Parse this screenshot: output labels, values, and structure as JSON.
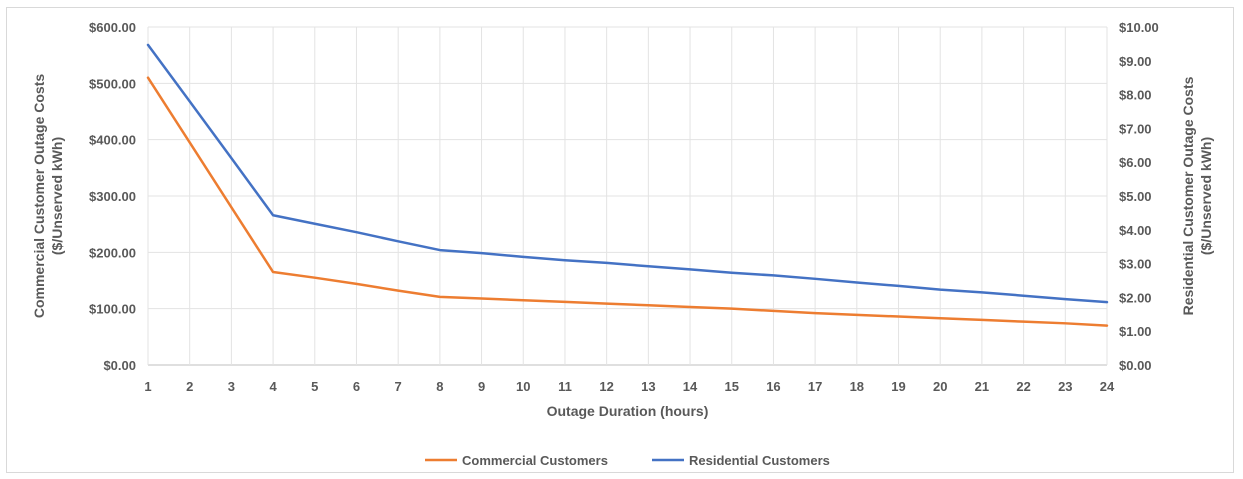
{
  "chart_data": {
    "type": "line",
    "x": [
      1,
      2,
      3,
      4,
      5,
      6,
      7,
      8,
      9,
      10,
      11,
      12,
      13,
      14,
      15,
      16,
      17,
      18,
      19,
      20,
      21,
      22,
      23,
      24
    ],
    "xlabel": "Outage Duration (hours)",
    "ylabel_left": "Commercial Customer Outage Costs ($/Unserved kWh)",
    "ylabel_right": "Residential Customer Outage Costs ($/Unserved kWh)",
    "ylim_left": [
      0,
      600
    ],
    "ylim_right": [
      0,
      10
    ],
    "yticks_left": [
      "$0.00",
      "$100.00",
      "$200.00",
      "$300.00",
      "$400.00",
      "$500.00",
      "$600.00"
    ],
    "yticks_right": [
      "$0.00",
      "$1.00",
      "$2.00",
      "$3.00",
      "$4.00",
      "$5.00",
      "$6.00",
      "$7.00",
      "$8.00",
      "$9.00",
      "$10.00"
    ],
    "grid": true,
    "legend_position": "bottom",
    "series": [
      {
        "name": "Commercial Customers",
        "axis": "left",
        "color": "#ED7D31",
        "values": [
          510,
          395,
          280,
          165,
          155,
          144,
          132,
          121,
          118,
          115,
          112,
          109,
          106,
          103,
          100,
          96,
          92,
          89,
          86,
          83,
          80,
          77,
          74,
          70
        ]
      },
      {
        "name": "Residential Customers",
        "axis": "right",
        "color": "#4472C4",
        "values": [
          9.47,
          7.8,
          6.12,
          4.43,
          4.18,
          3.93,
          3.66,
          3.4,
          3.31,
          3.2,
          3.1,
          3.02,
          2.92,
          2.83,
          2.73,
          2.65,
          2.55,
          2.44,
          2.34,
          2.23,
          2.15,
          2.05,
          1.95,
          1.86
        ]
      }
    ]
  }
}
